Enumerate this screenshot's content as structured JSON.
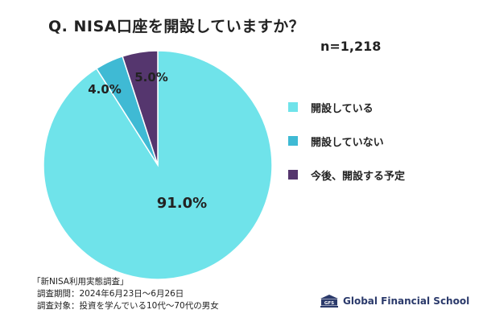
{
  "title": "Q. NISA口座を開設していますか？",
  "sample_size": "n=1,218",
  "chart_data": {
    "type": "pie",
    "title": "Q. NISA口座を開設していますか？",
    "slices": [
      {
        "label": "開設している",
        "value": 91.0,
        "display": "91.0%",
        "color": "#6fe3ea"
      },
      {
        "label": "開設していない",
        "value": 4.0,
        "display": "4.0%",
        "color": "#3fbad4"
      },
      {
        "label": "今後、開設する予定",
        "value": 5.0,
        "display": "5.0%",
        "color": "#55366e"
      }
    ],
    "legend_position": "right"
  },
  "source": {
    "survey_name": "「新NISA利用実態調査」",
    "period": "調査期間：2024年6月23日〜6月26日",
    "target": "調査対象：投資を学んでいる10代〜70代の男女"
  },
  "brand": {
    "name": "Global Financial School",
    "logo_text": "GFS",
    "color": "#2b3a6b"
  }
}
